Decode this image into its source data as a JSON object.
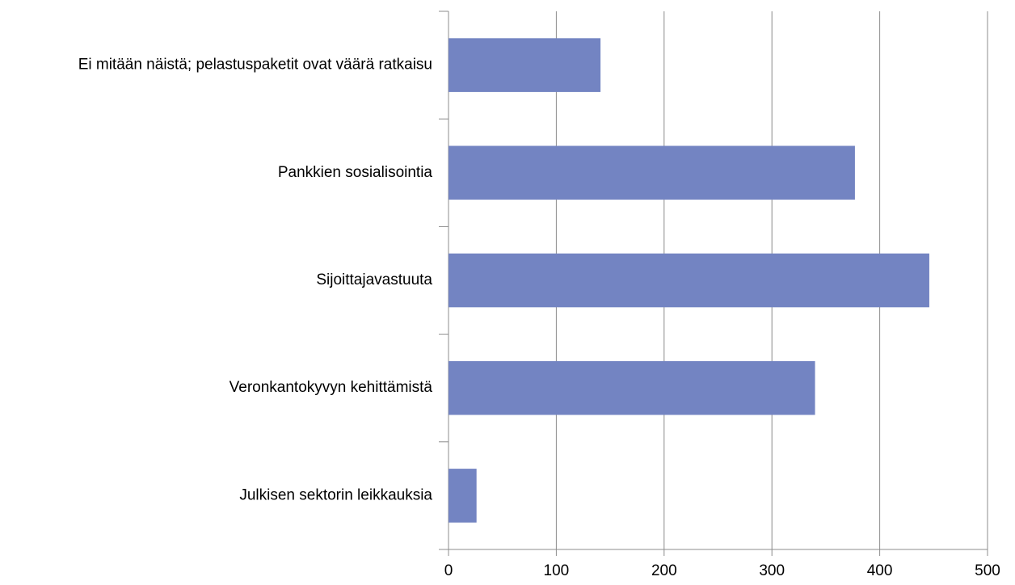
{
  "chart_data": {
    "type": "bar",
    "orientation": "horizontal",
    "categories": [
      "Ei mitään näistä; pelastuspaketit ovat väärä ratkaisu",
      "Pankkien sosialisointia",
      "Sijoittajavastuuta",
      "Veronkantokyvyn kehittämistä",
      "Julkisen sektorin leikkauksia"
    ],
    "values": [
      141,
      377,
      446,
      340,
      26
    ],
    "color": "#7384c2",
    "xlim": [
      0,
      500
    ],
    "xticks": [
      0,
      100,
      200,
      300,
      400,
      500
    ],
    "grid": true
  }
}
